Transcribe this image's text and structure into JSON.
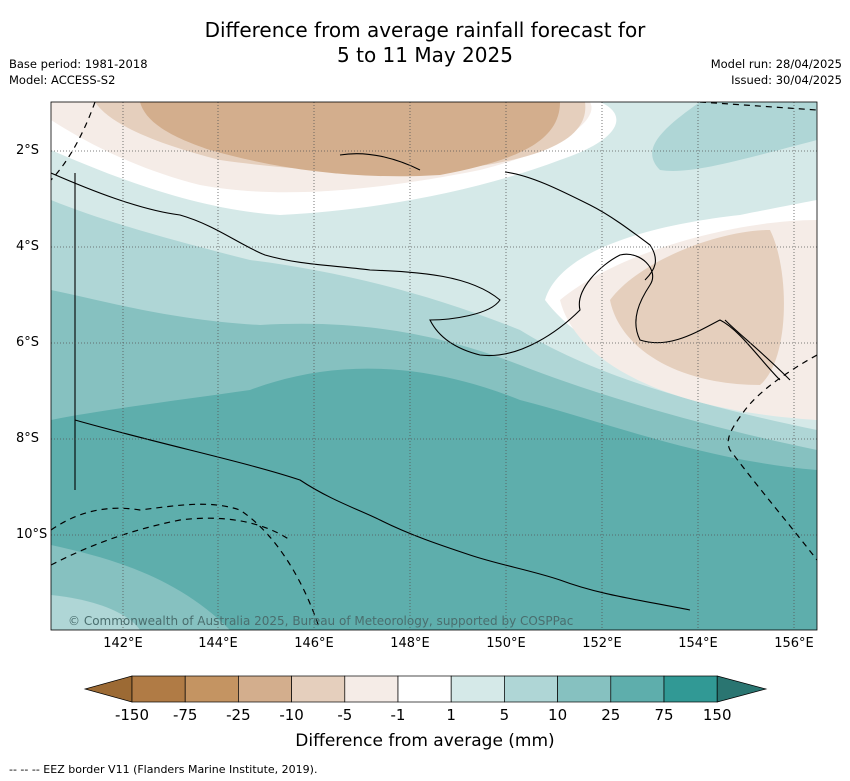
{
  "title_line1": "Difference from average rainfall forecast for",
  "title_line2": "5 to 11 May 2025",
  "meta_left": {
    "base_period": "Base period: 1981-2018",
    "model": "Model: ACCESS-S2"
  },
  "meta_right": {
    "model_run": "Model run: 28/04/2025",
    "issued": "Issued: 30/04/2025"
  },
  "lat_labels": [
    "2°S",
    "4°S",
    "6°S",
    "8°S",
    "10°S"
  ],
  "lon_labels": [
    "142°E",
    "144°E",
    "146°E",
    "148°E",
    "150°E",
    "152°E",
    "154°E",
    "156°E"
  ],
  "copyright": "© Commonwealth of Australia 2025, Bureau of Meteorology, supported by COSPPac",
  "colorbar": {
    "title": "Difference from average (mm)",
    "ticks": [
      "-150",
      "-75",
      "-25",
      "-10",
      "-5",
      "-1",
      "1",
      "5",
      "10",
      "25",
      "75",
      "150"
    ],
    "colors": [
      "#9c6a34",
      "#b07b45",
      "#c49462",
      "#d3ae8d",
      "#e5cfbd",
      "#f5ece7",
      "#ffffff",
      "#d5e9e8",
      "#afd6d6",
      "#86c1c0",
      "#5eaeac",
      "#319995",
      "#2a7571"
    ]
  },
  "footnote": "--  --  -- EEZ border V11 (Flanders Marine Institute, 2019)."
}
